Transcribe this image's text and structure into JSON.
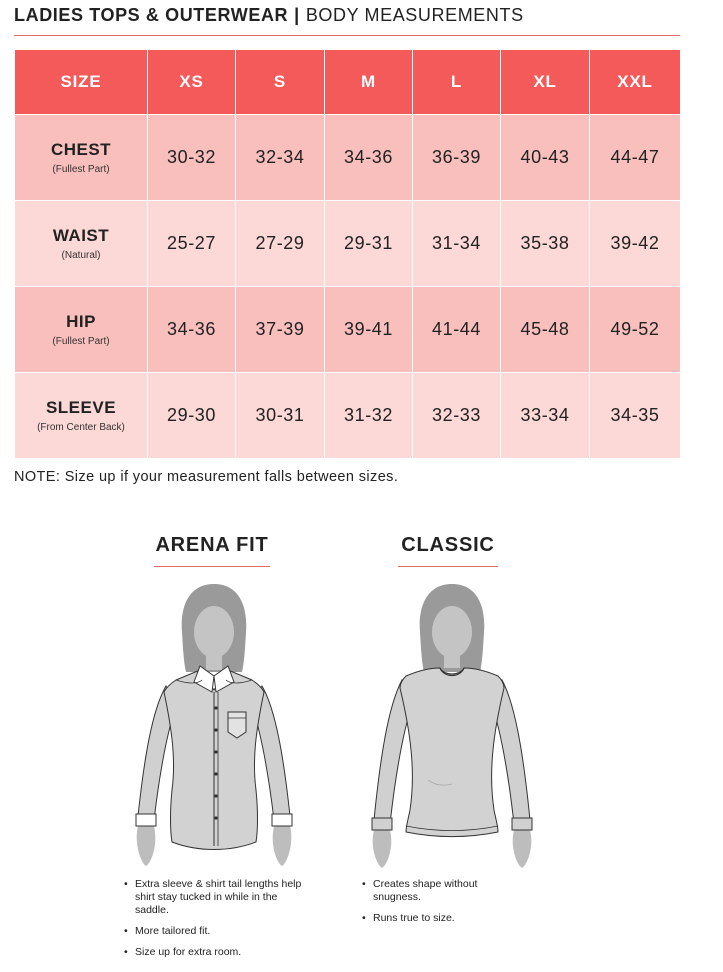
{
  "header": {
    "title_bold": "LADIES TOPS & OUTERWEAR",
    "separator": "|",
    "title_light": "BODY MEASUREMENTS"
  },
  "table": {
    "headers": [
      "SIZE",
      "XS",
      "S",
      "M",
      "L",
      "XL",
      "XXL"
    ],
    "rows": [
      {
        "name": "CHEST",
        "sub": "(Fullest Part)",
        "values": [
          "30-32",
          "32-34",
          "34-36",
          "36-39",
          "40-43",
          "44-47"
        ]
      },
      {
        "name": "WAIST",
        "sub": "(Natural)",
        "values": [
          "25-27",
          "27-29",
          "29-31",
          "31-34",
          "35-38",
          "39-42"
        ]
      },
      {
        "name": "HIP",
        "sub": "(Fullest Part)",
        "values": [
          "34-36",
          "37-39",
          "39-41",
          "41-44",
          "45-48",
          "49-52"
        ]
      },
      {
        "name": "SLEEVE",
        "sub": "(From Center Back)",
        "values": [
          "29-30",
          "30-31",
          "31-32",
          "32-33",
          "33-34",
          "34-35"
        ]
      }
    ]
  },
  "note": "NOTE: Size up if your measurement falls between sizes.",
  "fits": {
    "arena": {
      "title": "ARENA FIT",
      "bullets": [
        "Extra sleeve & shirt tail lengths help shirt stay tucked in while in the saddle.",
        "More tailored fit.",
        "Size up for extra room."
      ]
    },
    "classic": {
      "title": "CLASSIC",
      "bullets": [
        "Creates shape without snugness.",
        "Runs true to size."
      ]
    }
  },
  "colors": {
    "header_row": "#f55a5a",
    "row_dark": "#f9bfbd",
    "row_light": "#fcd8d6",
    "accent_rule": "#e26a6a"
  }
}
